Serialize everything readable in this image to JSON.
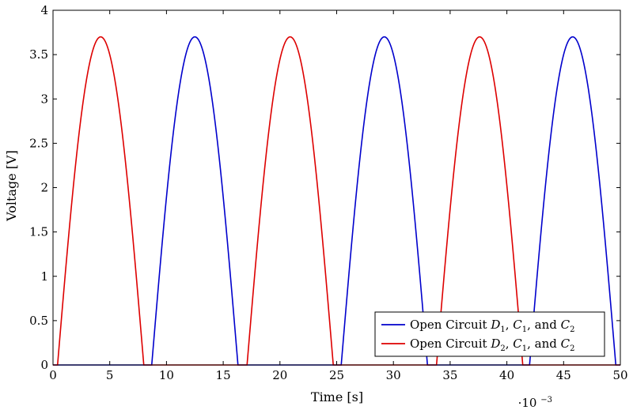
{
  "chart_data": {
    "type": "line",
    "xlabel": "Time [s]",
    "ylabel": "Voltage [V]",
    "x_multiplier": "·10",
    "x_multiplier_exp": "−3",
    "xlim": [
      0,
      50
    ],
    "ylim": [
      0,
      4
    ],
    "x_ticks": [
      "0",
      "5",
      "10",
      "15",
      "20",
      "25",
      "30",
      "35",
      "40",
      "45",
      "50"
    ],
    "y_ticks": [
      "0",
      "0.5",
      "1",
      "1.5",
      "2",
      "2.5",
      "3",
      "3.5",
      "4"
    ],
    "x_tick_values": [
      0,
      5,
      10,
      15,
      20,
      25,
      30,
      35,
      40,
      45,
      50
    ],
    "y_tick_values": [
      0,
      0.5,
      1,
      1.5,
      2,
      2.5,
      3,
      3.5,
      4
    ],
    "grid": false,
    "legend_position": "bottom-right",
    "peak": 3.7,
    "series": [
      {
        "name": "Open Circuit D1, C1, and C2",
        "legend": {
          "pre": "Open Circuit ",
          "d": "D",
          "d_sub": "1",
          "c1": "C",
          "c1_sub": "1",
          "and": ", and ",
          "c2": "C",
          "c2_sub": "2"
        },
        "color": "#0000cc",
        "pulses": [
          {
            "start": 8.7,
            "end": 16.3
          },
          {
            "start": 25.4,
            "end": 33.0
          },
          {
            "start": 42.0,
            "end": 49.6
          }
        ]
      },
      {
        "name": "Open Circuit D2, C1, and C2",
        "legend": {
          "pre": "Open Circuit ",
          "d": "D",
          "d_sub": "2",
          "c1": "C",
          "c1_sub": "1",
          "and": ", and ",
          "c2": "C",
          "c2_sub": "2"
        },
        "color": "#dd0000",
        "pulses": [
          {
            "start": 0.4,
            "end": 8.0
          },
          {
            "start": 17.1,
            "end": 24.7
          },
          {
            "start": 33.8,
            "end": 41.4
          }
        ]
      }
    ]
  }
}
